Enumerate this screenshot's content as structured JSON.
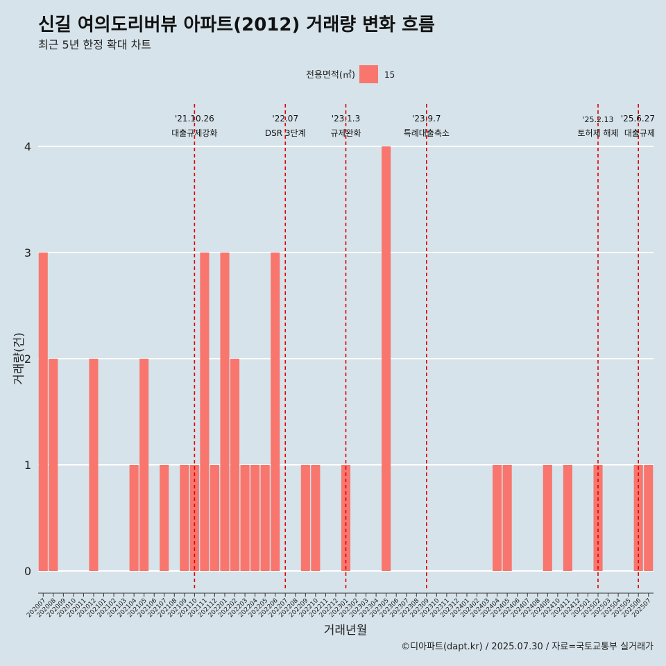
{
  "header": {
    "title": "신길 여의도리버뷰 아파트(2012) 거래량 변화 흐름",
    "subtitle": "최근 5년 한정 확대 차트"
  },
  "legend": {
    "title": "전용면적(㎡)",
    "items": [
      {
        "label": "15",
        "color": "#f8766d"
      }
    ]
  },
  "caption": "©디아파트(dapt.kr) / 2025.07.30 / 자료=국토교통부 실거래가",
  "chart_data": {
    "type": "bar",
    "xlabel": "거래년월",
    "ylabel": "거래량(건)",
    "ylim": [
      0,
      4
    ],
    "yticks": [
      0,
      1,
      2,
      3,
      4
    ],
    "grid": true,
    "legend_position": "top",
    "bar_color": "#f8766d",
    "categories": [
      "202007",
      "202008",
      "202009",
      "202010",
      "202011",
      "202012",
      "202101",
      "202102",
      "202103",
      "202104",
      "202105",
      "202106",
      "202107",
      "202108",
      "202109",
      "202110",
      "202111",
      "202112",
      "202201",
      "202202",
      "202203",
      "202204",
      "202205",
      "202206",
      "202207",
      "202208",
      "202209",
      "202210",
      "202211",
      "202212",
      "202301",
      "202302",
      "202303",
      "202304",
      "202305",
      "202306",
      "202307",
      "202308",
      "202309",
      "202310",
      "202311",
      "202312",
      "202401",
      "202402",
      "202403",
      "202404",
      "202405",
      "202406",
      "202407",
      "202408",
      "202409",
      "202410",
      "202411",
      "202412",
      "202501",
      "202502",
      "202503",
      "202504",
      "202505",
      "202506",
      "202507"
    ],
    "series": [
      {
        "name": "15",
        "values": [
          3,
          2,
          0,
          0,
          0,
          2,
          0,
          0,
          0,
          1,
          2,
          0,
          1,
          0,
          1,
          1,
          3,
          1,
          3,
          2,
          1,
          1,
          1,
          3,
          0,
          0,
          1,
          1,
          0,
          0,
          1,
          0,
          0,
          0,
          4,
          0,
          0,
          0,
          0,
          0,
          0,
          0,
          0,
          0,
          0,
          1,
          1,
          0,
          0,
          0,
          1,
          0,
          1,
          0,
          0,
          1,
          0,
          0,
          0,
          1,
          1
        ]
      }
    ],
    "annotations": [
      {
        "date": "'21.10.26",
        "label": "대출규제강화",
        "x_category": "202110",
        "line_color": "#e00000"
      },
      {
        "date": "'22.07",
        "label": "DSR 3단계",
        "x_category": "202207",
        "line_color": "#e00000"
      },
      {
        "date": "'23.1.3",
        "label": "규제완화",
        "x_category": "202301",
        "line_color": "#e00000"
      },
      {
        "date": "'23.9.7",
        "label": "특례대출축소",
        "x_category": "202309",
        "line_color": "#e00000"
      },
      {
        "date": "'25.2.13",
        "label": "토허제 해제",
        "x_category": "202502",
        "line_color": "#e00000"
      },
      {
        "date": "'25.6.27",
        "label": "대출규제",
        "x_category": "202506",
        "line_color": "#e00000"
      }
    ]
  }
}
